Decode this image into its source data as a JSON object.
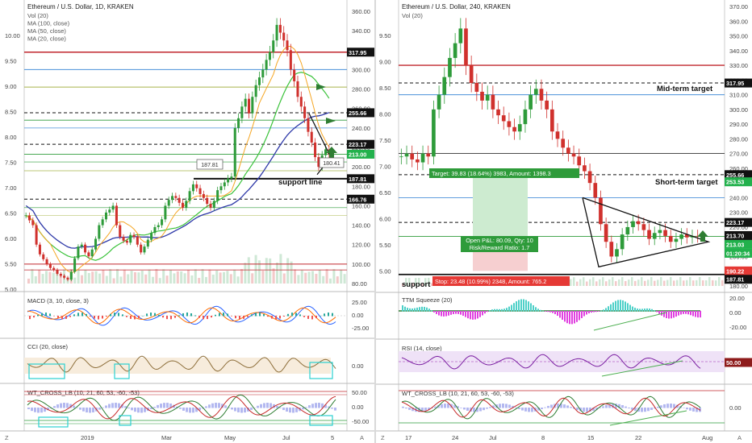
{
  "colors": {
    "up": "#26a69a",
    "down": "#ef5350",
    "upBody": "#2e9b3a",
    "downBody": "#d0312d",
    "ma100": "#2d38a8",
    "ma50": "#3ac23a",
    "ma20": "#f5a623",
    "resistance": "#c0262c",
    "blueLine": "#4a90d9",
    "olive": "#a9b54a",
    "tealFill": "#2bd0d0"
  },
  "left": {
    "title": "Ethereum / U.S. Dollar, 1D, KRAKEN",
    "legend": [
      "Vol (20)",
      "MA (100, close)",
      "MA (50, close)",
      "MA (20, close)"
    ],
    "ratioAxis": [
      "10.00",
      "9.50",
      "9.00",
      "8.50",
      "8.00",
      "7.50",
      "7.00",
      "6.50",
      "6.00",
      "5.50",
      "5.00"
    ],
    "priceAxis": [
      "360.00",
      "340.00",
      "320.00",
      "300.00",
      "280.00",
      "260.00",
      "240.00",
      "220.00",
      "200.00",
      "180.00",
      "160.00",
      "140.00",
      "120.00",
      "100.00",
      "80.00"
    ],
    "levelTags": [
      {
        "text": "317.95",
        "bg": "#111111"
      },
      {
        "text": "255.66",
        "bg": "#111111"
      },
      {
        "text": "223.17",
        "bg": "#111111"
      },
      {
        "text": "213.00",
        "bg": "#22b14c"
      },
      {
        "text": "187.81",
        "bg": "#111111"
      },
      {
        "text": "166.76",
        "bg": "#111111"
      }
    ],
    "callouts": [
      "187.81",
      "180.41"
    ],
    "supportLabel": "support line",
    "xAxis": [
      "2019",
      "Mar",
      "May",
      "Jul",
      "5"
    ],
    "indicators": [
      {
        "title": "MACD (3, 10, close, 3)",
        "ticks": [
          "25.00",
          "0.00",
          "-25.00"
        ]
      },
      {
        "title": "CCI (20, close)",
        "ticks": [
          "0.00"
        ]
      },
      {
        "title": "WT_CROSS_LB (10, 21, 60, 53, -60, -53)",
        "ticks": [
          "50.00",
          "0.00",
          "-50.00"
        ]
      }
    ],
    "corner": [
      "Z",
      "A"
    ]
  },
  "right": {
    "title": "Ethereum / U.S. Dollar, 240, KRAKEN",
    "legend": [
      "Vol (20)"
    ],
    "ratioAxis": [
      "9.50",
      "9.00",
      "8.50",
      "8.00",
      "7.50",
      "7.00",
      "6.50",
      "6.00",
      "5.50",
      "5.00"
    ],
    "priceAxis": [
      "370.00",
      "360.00",
      "350.00",
      "340.00",
      "330.00",
      "320.00",
      "310.00",
      "300.00",
      "290.00",
      "280.00",
      "270.00",
      "260.00",
      "250.00",
      "240.00",
      "230.00",
      "220.00",
      "210.00",
      "200.00",
      "190.00",
      "180.00"
    ],
    "levelTags": [
      {
        "text": "317.95",
        "bg": "#111111"
      },
      {
        "text": "255.66",
        "bg": "#111111"
      },
      {
        "text": "253.53",
        "bg": "#22b14c"
      },
      {
        "text": "223.17",
        "bg": "#111111"
      },
      {
        "text": "213.70",
        "bg": "#111111"
      },
      {
        "text": "213.03",
        "bg": "#22b14c"
      },
      {
        "text": "01:20:34",
        "bg": "#22b14c"
      },
      {
        "text": "190.22",
        "bg": "#e53935"
      },
      {
        "text": "187.81",
        "bg": "#111111"
      }
    ],
    "midTarget": "Mid-term target",
    "shortTarget": "Short-term target",
    "targetBox": "Target: 39.83 (18.64%) 3983, Amount: 1398.3",
    "openPnl": "Open P&L: 80.09, Qty: 10",
    "riskReward": "Risk/Reward Ratio: 1.7",
    "stopBox": "Stop: 23.48 (10.99%) 2348, Amount: 765.2",
    "supportLabel": "support",
    "xAxis": [
      "17",
      "24",
      "Jul",
      "8",
      "15",
      "22",
      "Aug"
    ],
    "indicators": [
      {
        "title": "TTM Squeeze (20)",
        "ticks": [
          "20.00",
          "0.00",
          "-20.00"
        ]
      },
      {
        "title": "RSI (14, close)",
        "ticks": [
          "50.00"
        ]
      },
      {
        "title": "WT_CROSS_LB (10, 21, 60, 53, -60, -53)",
        "ticks": [
          "0.00"
        ]
      }
    ],
    "corner": [
      "Z",
      "A"
    ]
  },
  "chart_data": [
    {
      "type": "candlestick",
      "title": "Ethereum / U.S. Dollar, 1D, KRAKEN",
      "series": [
        {
          "name": "MA (100, close)"
        },
        {
          "name": "MA (50, close)"
        },
        {
          "name": "MA (20, close)"
        }
      ],
      "approx_close": [
        150,
        145,
        140,
        120,
        110,
        105,
        100,
        96,
        94,
        90,
        88,
        86,
        84,
        92,
        106,
        118,
        120,
        112,
        108,
        115,
        126,
        140,
        146,
        153,
        156,
        160,
        140,
        128,
        124,
        122,
        130,
        128,
        120,
        112,
        118,
        125,
        132,
        138,
        140,
        146,
        160,
        166,
        170,
        168,
        163,
        158,
        165,
        175,
        182,
        178,
        172,
        168,
        162,
        158,
        165,
        176,
        180,
        184,
        188,
        190,
        240,
        250,
        262,
        270,
        255,
        272,
        284,
        292,
        300,
        310,
        318,
        330,
        346,
        338,
        330,
        320,
        300,
        288,
        272,
        262,
        250,
        236,
        225,
        210,
        200,
        212,
        218,
        213
      ],
      "levels": [
        317.95,
        255.66,
        223.17,
        213.0,
        187.81,
        166.76
      ],
      "ylim": [
        80,
        360
      ]
    },
    {
      "type": "candlestick",
      "title": "Ethereum / U.S. Dollar, 240, KRAKEN",
      "approx_close": [
        268,
        270,
        266,
        264,
        270,
        268,
        300,
        310,
        322,
        335,
        345,
        355,
        330,
        318,
        312,
        306,
        310,
        300,
        296,
        292,
        288,
        285,
        290,
        300,
        310,
        314,
        306,
        300,
        285,
        280,
        274,
        270,
        268,
        262,
        258,
        250,
        240,
        222,
        210,
        200,
        205,
        215,
        220,
        224,
        222,
        218,
        212,
        216,
        218,
        214,
        210,
        212,
        215,
        213,
        214,
        213.7
      ],
      "levels": [
        317.95,
        255.66,
        253.53,
        223.17,
        213.7,
        190.22,
        187.81
      ],
      "ylim": [
        180,
        370
      ]
    }
  ]
}
